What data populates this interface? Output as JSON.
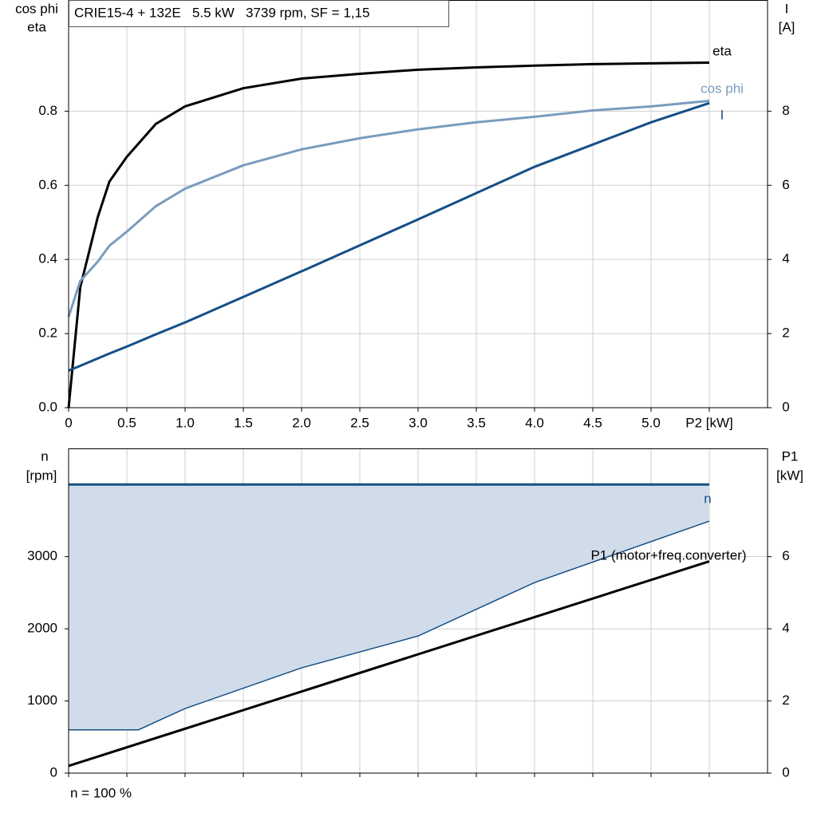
{
  "chart_data": [
    {
      "type": "line",
      "title": "CRIE15-4 + 132E   5.5 kW   3739 rpm, SF = 1,15",
      "y_label": [
        "cos phi",
        "eta"
      ],
      "y2_label": [
        "I",
        "[A]"
      ],
      "x": [
        0,
        0.1,
        0.25,
        0.35,
        0.5,
        0.75,
        1,
        1.5,
        2,
        2.5,
        3,
        3.5,
        4,
        4.5,
        5,
        5.5
      ],
      "xlim": [
        0,
        6
      ],
      "xticks": [
        {
          "value": 0,
          "label": "0"
        },
        0.5,
        {
          "value": 1,
          "label": "1.0"
        },
        1.5,
        {
          "value": 2,
          "label": "2.0"
        },
        2.5,
        {
          "value": 3,
          "label": "3.0"
        },
        3.5,
        {
          "value": 4,
          "label": "4.0"
        },
        4.5,
        {
          "value": 5,
          "label": "5.0"
        },
        {
          "value": 5.5,
          "label": "P2 [kW]"
        }
      ],
      "ylim": [
        0,
        1.1
      ],
      "yticks": [
        {
          "value": 0,
          "label": "0.0"
        },
        0.2,
        0.4,
        0.6,
        0.8
      ],
      "y2lim": [
        0,
        11
      ],
      "y2ticks": [
        0,
        2,
        4,
        6,
        8
      ],
      "grid": true,
      "series": [
        {
          "name": "eta",
          "color": "#000000",
          "values": [
            0,
            0.325,
            0.514,
            0.61,
            0.677,
            0.766,
            0.813,
            0.862,
            0.888,
            0.901,
            0.912,
            0.918,
            0.923,
            0.927,
            0.929,
            0.931
          ]
        },
        {
          "name": "cos phi",
          "color": "#7a9cbf",
          "values": [
            0.245,
            0.342,
            0.394,
            0.437,
            0.475,
            0.544,
            0.591,
            0.654,
            0.697,
            0.727,
            0.751,
            0.77,
            0.785,
            0.802,
            0.813,
            0.828
          ]
        },
        {
          "name": "I",
          "color": "#154f86",
          "axis": "y2",
          "values": [
            1.0,
            1.13,
            1.33,
            1.46,
            1.65,
            1.98,
            2.3,
            2.99,
            3.68,
            4.38,
            5.08,
            5.79,
            6.5,
            7.1,
            7.7,
            8.22
          ]
        }
      ]
    },
    {
      "type": "line",
      "y_label": [
        "n",
        "[rpm]"
      ],
      "y2_label": [
        "P1",
        "[kW]"
      ],
      "note": "n = 100 %",
      "xlim": [
        0,
        6
      ],
      "xticks": [
        0,
        0.5,
        1,
        1.5,
        2,
        2.5,
        3,
        3.5,
        4,
        4.5,
        5,
        5.5
      ],
      "show_xtick_labels": false,
      "ylim": [
        0,
        4500
      ],
      "yticks": [
        0,
        1000,
        2000,
        3000
      ],
      "y2lim": [
        0,
        9
      ],
      "y2ticks": [
        0,
        2,
        4,
        6
      ],
      "grid": true,
      "series": [
        {
          "name": "n",
          "color": "#154f86",
          "fill": "#d0dce9",
          "x": [
            0,
            5.5
          ],
          "values": [
            4000,
            4000
          ],
          "fill_lower": {
            "x": [
              0,
              0.6,
              1,
              2,
              3,
              4,
              5.5
            ],
            "values": [
              600,
              600,
              895,
              1459,
              1900,
              2641,
              3492
            ]
          }
        },
        {
          "name": "P1 (motor+freq.converter)",
          "color": "#000000",
          "axis": "y2",
          "x": [
            0,
            5.5
          ],
          "values": [
            0.2,
            5.87
          ]
        }
      ]
    }
  ]
}
